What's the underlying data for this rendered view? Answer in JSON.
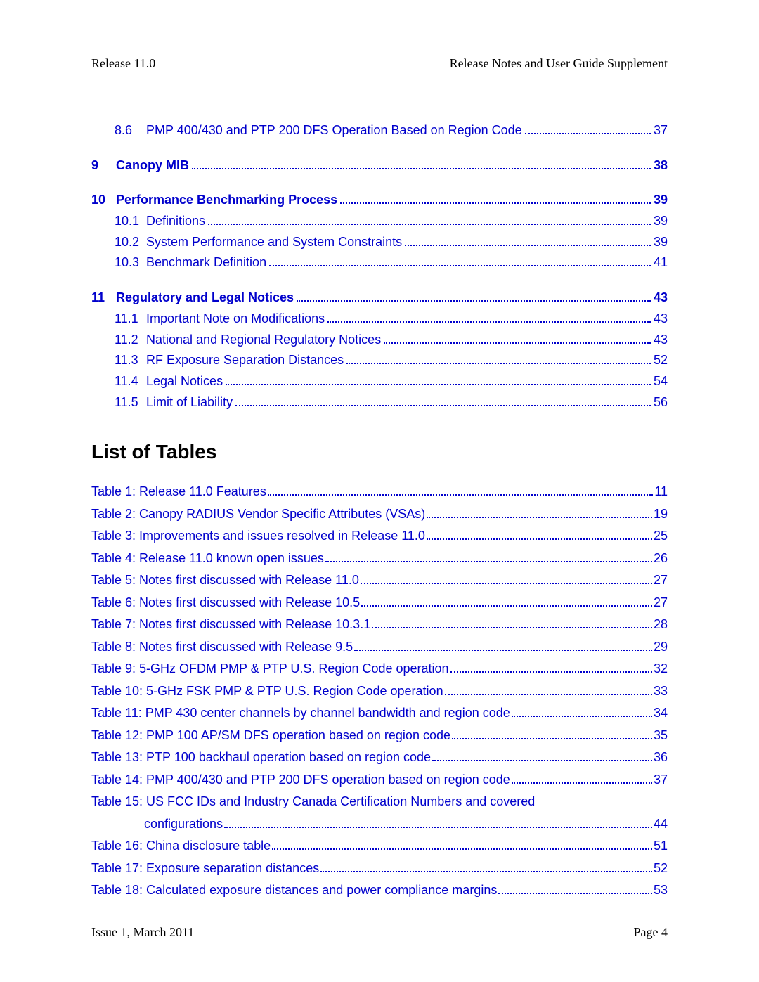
{
  "header": {
    "left": "Release 11.0",
    "right": "Release Notes and User Guide Supplement"
  },
  "toc": {
    "sections": [
      {
        "entries": [
          {
            "type": "sub",
            "num": "8.6",
            "title": "PMP 400/430 and PTP 200 DFS Operation Based on Region Code",
            "page": "37"
          }
        ]
      },
      {
        "entries": [
          {
            "type": "main",
            "num": "9",
            "title": "Canopy MIB",
            "page": "38"
          }
        ]
      },
      {
        "entries": [
          {
            "type": "main",
            "num": "10",
            "title": "Performance Benchmarking Process",
            "page": "39"
          },
          {
            "type": "sub",
            "num": "10.1",
            "title": "Definitions",
            "page": "39"
          },
          {
            "type": "sub",
            "num": "10.2",
            "title": "System Performance and System Constraints",
            "page": "39"
          },
          {
            "type": "sub",
            "num": "10.3",
            "title": "Benchmark Definition",
            "page": "41"
          }
        ]
      },
      {
        "entries": [
          {
            "type": "main",
            "num": "11",
            "title": "Regulatory and Legal Notices",
            "page": "43"
          },
          {
            "type": "sub",
            "num": "11.1",
            "title": "Important Note on Modifications",
            "page": "43"
          },
          {
            "type": "sub",
            "num": "11.2",
            "title": "National and Regional Regulatory Notices",
            "page": "43"
          },
          {
            "type": "sub",
            "num": "11.3",
            "title": "RF Exposure Separation Distances",
            "page": "52"
          },
          {
            "type": "sub",
            "num": "11.4",
            "title": "Legal Notices",
            "page": "54"
          },
          {
            "type": "sub",
            "num": "11.5",
            "title": "Limit of Liability",
            "page": "56"
          }
        ]
      }
    ]
  },
  "list_tables_title": "List of Tables",
  "lot": [
    {
      "title": "Table 1: Release 11.0 Features",
      "page": "11"
    },
    {
      "title": "Table 2: Canopy RADIUS Vendor Specific Attributes (VSAs)",
      "page": "19"
    },
    {
      "title": "Table 3: Improvements and issues resolved in Release 11.0",
      "page": "25"
    },
    {
      "title": "Table 4: Release 11.0 known open issues",
      "page": "26"
    },
    {
      "title": "Table 5: Notes first discussed with Release 11.0",
      "page": "27"
    },
    {
      "title": "Table 6: Notes first discussed with Release 10.5",
      "page": "27"
    },
    {
      "title": "Table 7: Notes first discussed with Release 10.3.1",
      "page": "28"
    },
    {
      "title": "Table 8: Notes first discussed with Release 9.5",
      "page": "29"
    },
    {
      "title": "Table 9: 5-GHz OFDM PMP & PTP U.S. Region Code operation",
      "page": "32"
    },
    {
      "title": "Table 10: 5-GHz FSK PMP & PTP U.S. Region Code operation",
      "page": "33"
    },
    {
      "title": "Table 11: PMP 430 center channels by channel bandwidth and region code",
      "page": "34"
    },
    {
      "title": "Table 12: PMP 100 AP/SM DFS operation based on region code",
      "page": "35"
    },
    {
      "title": "Table 13: PTP 100 backhaul operation based on region code",
      "page": "36"
    },
    {
      "title": "Table 14: PMP 400/430 and PTP 200 DFS operation based on region code",
      "page": "37"
    },
    {
      "title": "Table 15: US FCC IDs and Industry Canada Certification Numbers and covered",
      "wrap": true,
      "title2": "configurations",
      "page": "44"
    },
    {
      "title": "Table 16: China disclosure table",
      "page": "51"
    },
    {
      "title": "Table 17: Exposure separation distances",
      "page": "52"
    },
    {
      "title": "Table 18: Calculated exposure distances and power compliance margins",
      "page": "53"
    }
  ],
  "footer": {
    "left": "Issue 1, March 2011",
    "right": "Page 4"
  }
}
